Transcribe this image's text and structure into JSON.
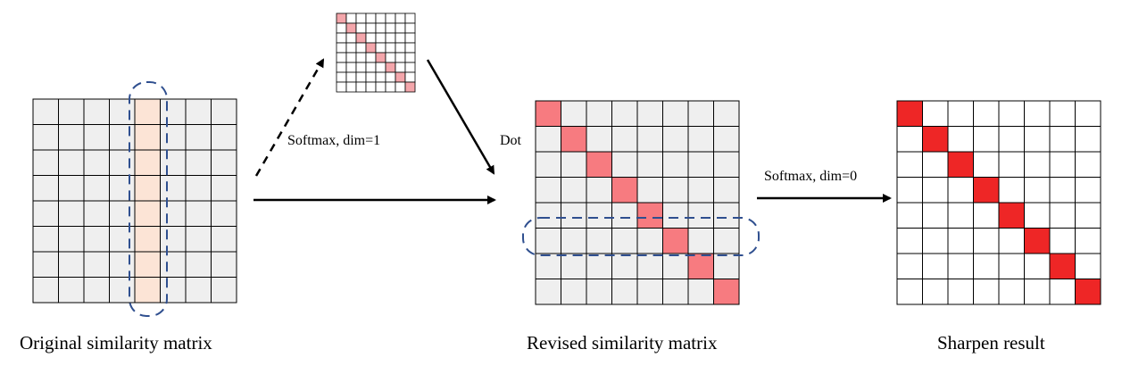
{
  "labels": {
    "original": "Original similarity matrix",
    "revised": "Revised similarity matrix",
    "sharpen": "Sharpen result",
    "softmax_dim1": "Softmax, dim=1",
    "softmax_dim0": "Softmax, dim=0",
    "dot": "Dot"
  },
  "matrices": {
    "original": {
      "rows": 8,
      "cols": 8,
      "highlight_column": 4
    },
    "softmax_small": {
      "rows": 8,
      "cols": 8
    },
    "revised": {
      "rows": 8,
      "cols": 8,
      "highlight_row": 5
    },
    "sharpen": {
      "rows": 8,
      "cols": 8
    }
  },
  "colors": {
    "gray_cell": "#efefef",
    "column_highlight": "#fce4d6",
    "light_pink": "#f4a6ab",
    "mid_red": "#f77b80",
    "strong_red": "#ee2626",
    "dashed_outline": "#2f4f8f"
  }
}
